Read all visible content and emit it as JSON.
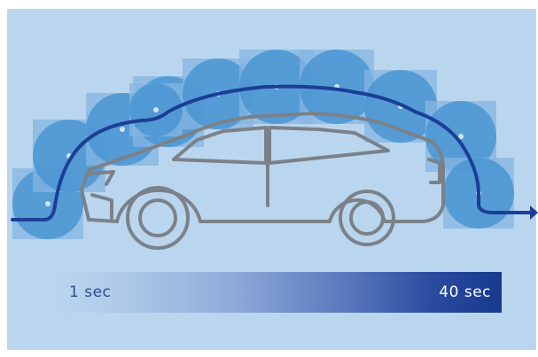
{
  "colors": {
    "panel_background": "#bad6ee",
    "cloud_fill": "#4a95d2",
    "square_fill": "#84b5e1",
    "core_fill": "#cfe4f4",
    "airflow_line": "#1c3e96",
    "car_outline": "#7b8189",
    "time_bar_start": "#bad6ee",
    "time_bar_end": "#173a8e"
  },
  "icons": [
    "car-outline-icon",
    "airflow-path-icon",
    "arrow-right-icon",
    "particle-cloud-icon"
  ],
  "clouds": {
    "count": 11
  },
  "time_bar": {
    "start_label": "1 sec",
    "end_label": "40 sec"
  }
}
